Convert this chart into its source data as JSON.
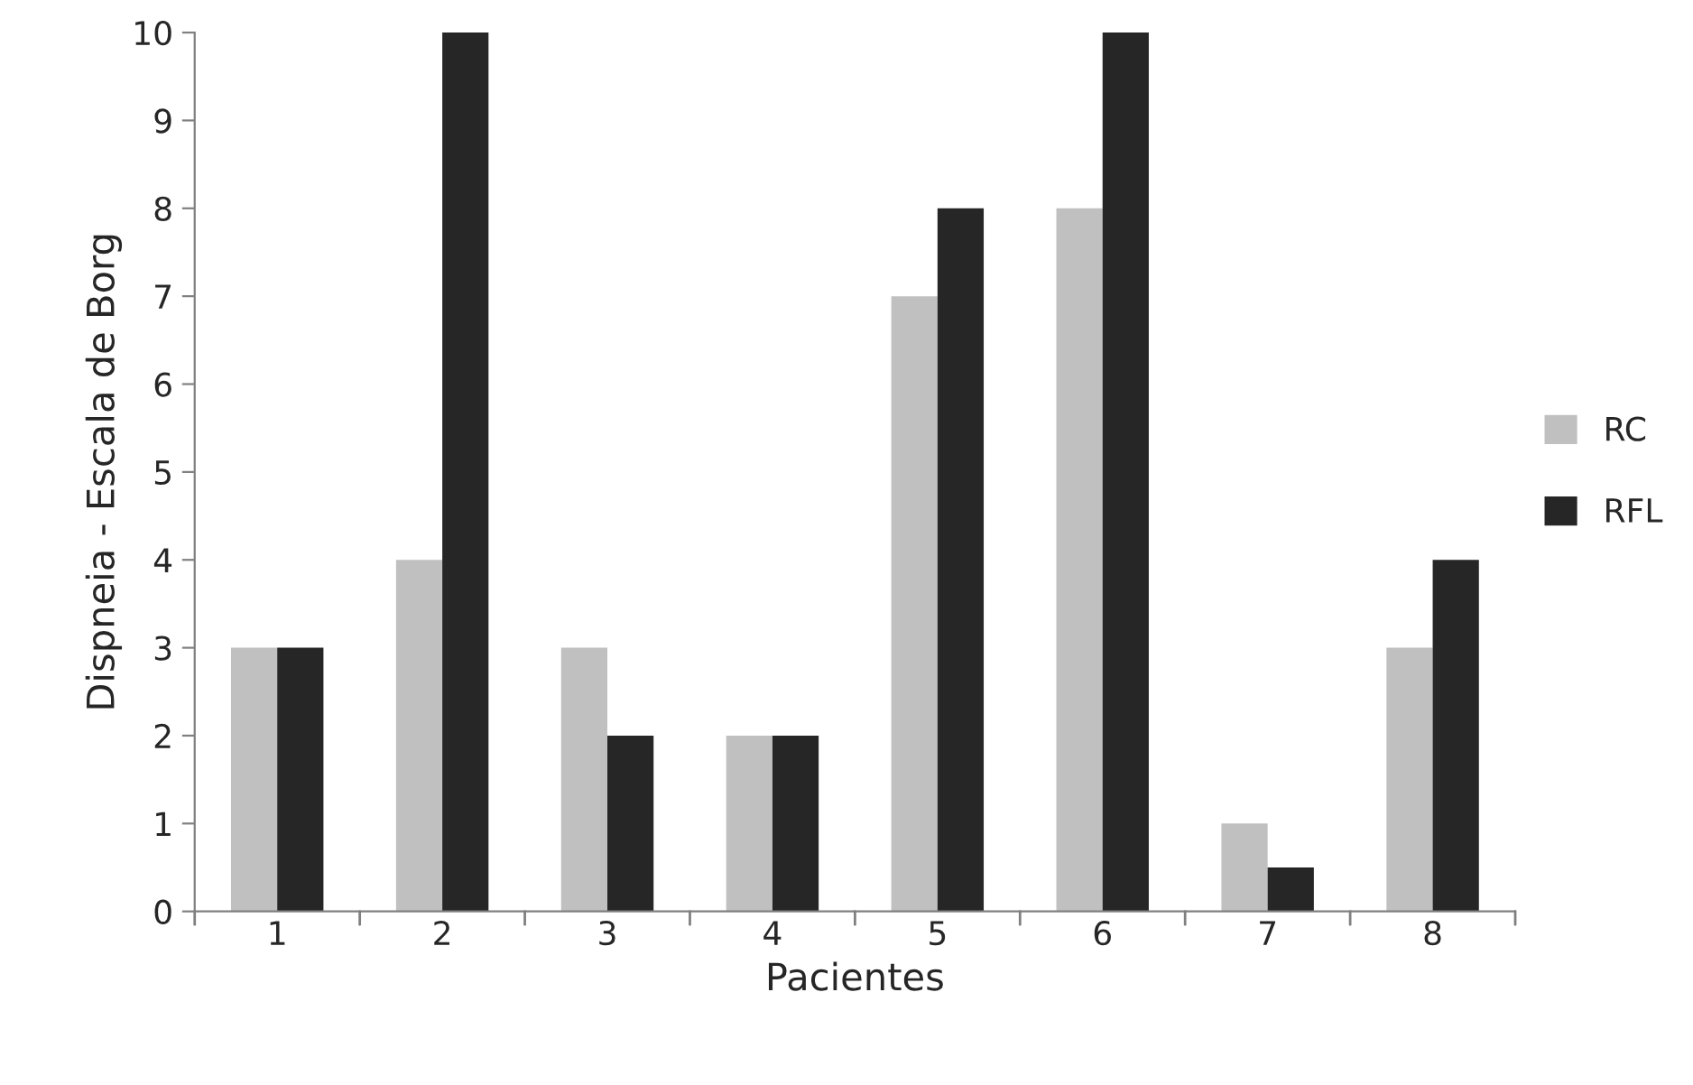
{
  "chart_data": {
    "type": "bar",
    "xlabel": "Pacientes",
    "ylabel": "Dispneia - Escala de Borg",
    "categories": [
      "1",
      "2",
      "3",
      "4",
      "5",
      "6",
      "7",
      "8"
    ],
    "series": [
      {
        "name": "RC",
        "color": "#c0c0c0",
        "values": [
          3,
          4,
          3,
          2,
          7,
          8,
          1,
          3
        ]
      },
      {
        "name": "RFL",
        "color": "#262626",
        "values": [
          3,
          10,
          2,
          2,
          8,
          10,
          0.5,
          4
        ]
      }
    ],
    "ylim": [
      0,
      10
    ],
    "yticks": [
      0,
      1,
      2,
      3,
      4,
      5,
      6,
      7,
      8,
      9,
      10
    ],
    "grid": false,
    "legend": "right"
  }
}
